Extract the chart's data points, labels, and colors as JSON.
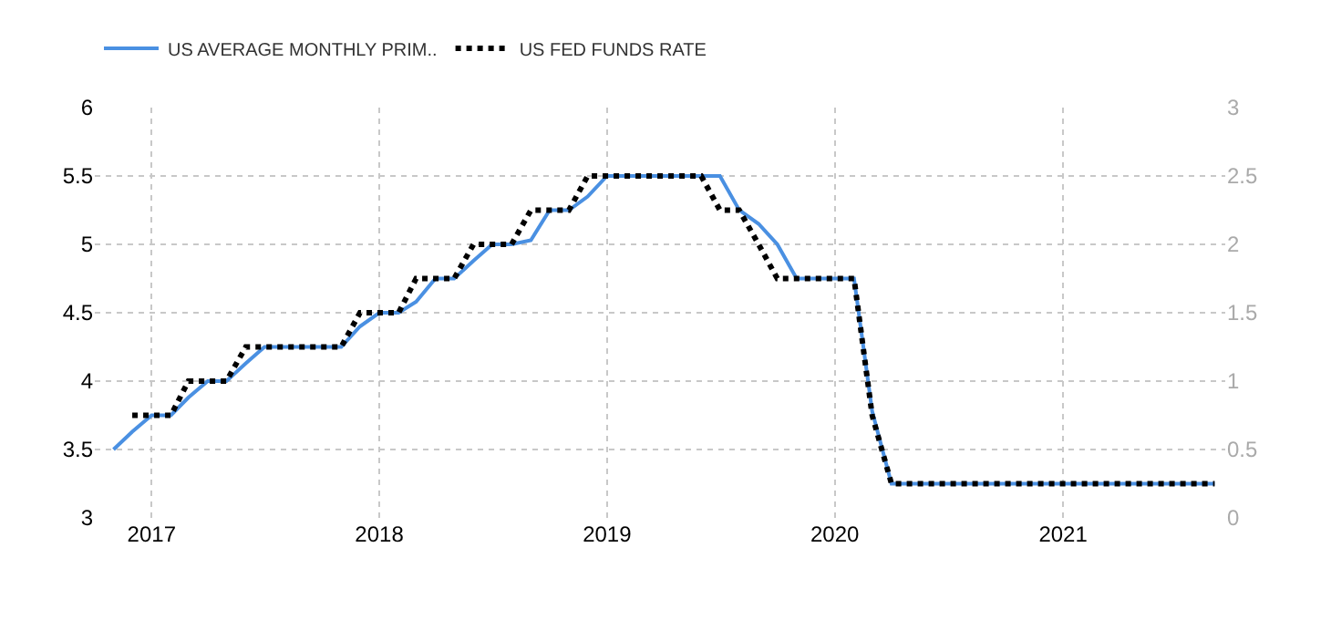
{
  "chart_data": {
    "type": "line",
    "legend": "top left",
    "grid": true,
    "xlim": [
      "2016-10-02",
      "2021-09-18"
    ],
    "xticks": [
      {
        "value": "2017-01",
        "label": "2017"
      },
      {
        "value": "2018-01",
        "label": "2018"
      },
      {
        "value": "2019-01",
        "label": "2019"
      },
      {
        "value": "2020-01",
        "label": "2020"
      },
      {
        "value": "2021-01",
        "label": "2021"
      }
    ],
    "ylim": [
      3,
      6
    ],
    "yticks": [
      3,
      3.5,
      4,
      4.5,
      5,
      5.5,
      6
    ],
    "y2lim": [
      0,
      3
    ],
    "y2ticks": [
      0,
      0.5,
      1,
      1.5,
      2,
      2.5,
      3
    ],
    "series": [
      {
        "name": "US AVERAGE MONTHLY PRIM..",
        "color": "#4a90e2",
        "line_style": "solid",
        "x": [
          "2016-11",
          "2016-12",
          "2017-01",
          "2017-02",
          "2017-03",
          "2017-04",
          "2017-05",
          "2017-06",
          "2017-07",
          "2017-08",
          "2017-09",
          "2017-10",
          "2017-11",
          "2017-12",
          "2018-01",
          "2018-02",
          "2018-03",
          "2018-04",
          "2018-05",
          "2018-06",
          "2018-07",
          "2018-08",
          "2018-09",
          "2018-10",
          "2018-11",
          "2018-12",
          "2019-01",
          "2019-02",
          "2019-03",
          "2019-04",
          "2019-05",
          "2019-06",
          "2019-07",
          "2019-08",
          "2019-09",
          "2019-10",
          "2019-11",
          "2019-12",
          "2020-01",
          "2020-02",
          "2020-03",
          "2020-04",
          "2020-05",
          "2020-06",
          "2020-07",
          "2020-08",
          "2020-09",
          "2020-10",
          "2020-11",
          "2020-12",
          "2021-01",
          "2021-02",
          "2021-03",
          "2021-04",
          "2021-05",
          "2021-06",
          "2021-07",
          "2021-08",
          "2021-09"
        ],
        "values": [
          3.5,
          3.63,
          3.75,
          3.75,
          3.88,
          4.0,
          4.0,
          4.13,
          4.25,
          4.25,
          4.25,
          4.25,
          4.25,
          4.4,
          4.5,
          4.5,
          4.58,
          4.75,
          4.75,
          4.88,
          5.0,
          5.0,
          5.03,
          5.25,
          5.25,
          5.35,
          5.5,
          5.5,
          5.5,
          5.5,
          5.5,
          5.5,
          5.5,
          5.25,
          5.15,
          5.0,
          4.75,
          4.75,
          4.75,
          4.75,
          3.78,
          3.25,
          3.25,
          3.25,
          3.25,
          3.25,
          3.25,
          3.25,
          3.25,
          3.25,
          3.25,
          3.25,
          3.25,
          3.25,
          3.25,
          3.25,
          3.25,
          3.25,
          3.25
        ]
      },
      {
        "name": "US FED FUNDS RATE",
        "color": "#000000",
        "line_style": "dotted",
        "axis": "y2",
        "x": [
          "2016-12",
          "2017-01",
          "2017-02",
          "2017-03",
          "2017-04",
          "2017-05",
          "2017-06",
          "2017-07",
          "2017-08",
          "2017-09",
          "2017-10",
          "2017-11",
          "2017-12",
          "2018-01",
          "2018-02",
          "2018-03",
          "2018-04",
          "2018-05",
          "2018-06",
          "2018-07",
          "2018-08",
          "2018-09",
          "2018-10",
          "2018-11",
          "2018-12",
          "2019-01",
          "2019-02",
          "2019-03",
          "2019-04",
          "2019-05",
          "2019-06",
          "2019-07",
          "2019-08",
          "2019-09",
          "2019-10",
          "2019-11",
          "2019-12",
          "2020-01",
          "2020-02",
          "2020-03",
          "2020-04",
          "2020-05",
          "2020-06",
          "2020-07",
          "2020-08",
          "2020-09",
          "2020-10",
          "2020-11",
          "2020-12",
          "2021-01",
          "2021-02",
          "2021-03",
          "2021-04",
          "2021-05",
          "2021-06",
          "2021-07",
          "2021-08",
          "2021-09"
        ],
        "values": [
          0.75,
          0.75,
          0.75,
          1.0,
          1.0,
          1.0,
          1.25,
          1.25,
          1.25,
          1.25,
          1.25,
          1.25,
          1.5,
          1.5,
          1.5,
          1.75,
          1.75,
          1.75,
          2.0,
          2.0,
          2.0,
          2.25,
          2.25,
          2.25,
          2.5,
          2.5,
          2.5,
          2.5,
          2.5,
          2.5,
          2.5,
          2.25,
          2.25,
          2.0,
          1.75,
          1.75,
          1.75,
          1.75,
          1.75,
          0.75,
          0.25,
          0.25,
          0.25,
          0.25,
          0.25,
          0.25,
          0.25,
          0.25,
          0.25,
          0.25,
          0.25,
          0.25,
          0.25,
          0.25,
          0.25,
          0.25,
          0.25,
          0.25
        ]
      }
    ]
  }
}
